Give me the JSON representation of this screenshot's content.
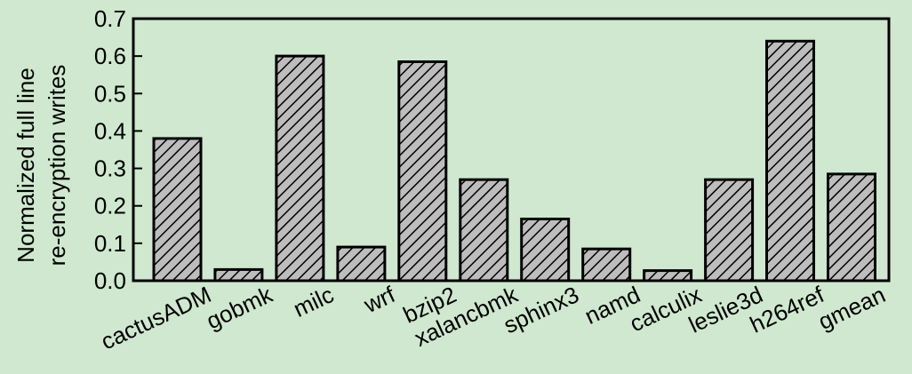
{
  "colors": {
    "background": "#cfe8cf",
    "bar_fill": "#bdbdbd",
    "hatch": "#000000",
    "axis": "#000000"
  },
  "chart_data": {
    "type": "bar",
    "title": "",
    "xlabel": "",
    "ylabel": "Normalized full line re-encryption writes",
    "ylabel_lines": [
      "Normalized full line",
      "re-encryption writes"
    ],
    "ylim": [
      0,
      0.7
    ],
    "yticks": [
      "0.0",
      "0.1",
      "0.2",
      "0.3",
      "0.4",
      "0.5",
      "0.6",
      "0.7"
    ],
    "grid": false,
    "legend": "none",
    "hatch": "diagonal",
    "categories": [
      "cactusADM",
      "gobmk",
      "milc",
      "wrf",
      "bzip2",
      "xalancbmk",
      "sphinx3",
      "namd",
      "calculix",
      "leslie3d",
      "h264ref",
      "gmean"
    ],
    "values": [
      0.38,
      0.03,
      0.6,
      0.09,
      0.585,
      0.27,
      0.165,
      0.085,
      0.027,
      0.27,
      0.64,
      0.285
    ]
  }
}
